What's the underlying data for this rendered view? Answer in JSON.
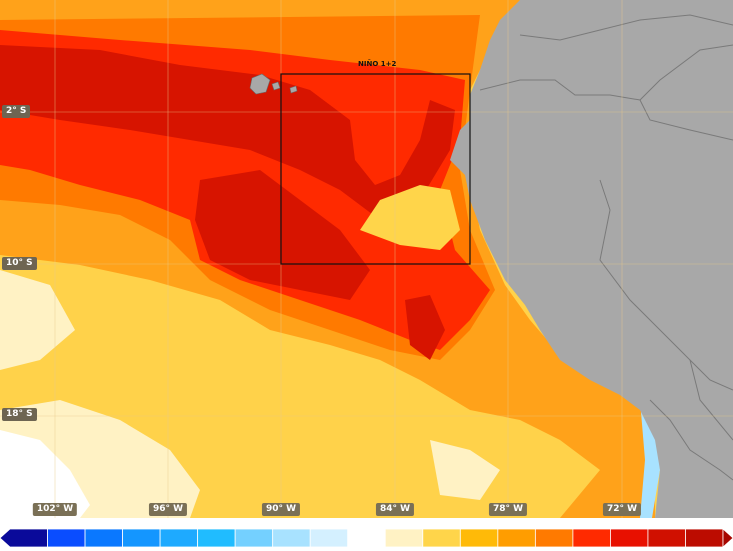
{
  "map": {
    "region_box_label": "NIÑO 1+2",
    "latitude_labels": [
      "2° S",
      "10° S",
      "18° S"
    ],
    "longitude_labels": [
      "102° W",
      "96° W",
      "90° W",
      "84° W",
      "78° W",
      "72° W"
    ]
  },
  "colors": {
    "ocean_background": "#ffd24a",
    "land": "#a8a8a8",
    "borders": "#7a7a7a",
    "region_box": "#111111"
  },
  "colorbar": {
    "colors": [
      "#0a0a9a",
      "#0a28d8",
      "#0a4dff",
      "#0a78ff",
      "#1496ff",
      "#1eaaff",
      "#20bcff",
      "#74d0ff",
      "#a8e2ff",
      "#d4f0ff",
      "#ffffff",
      "#fff2c4",
      "#ffd54a",
      "#ffba08",
      "#ff9d00",
      "#ff7a00",
      "#ff2a00",
      "#e81000",
      "#d01000",
      "#bc0c00",
      "#a60600"
    ]
  }
}
